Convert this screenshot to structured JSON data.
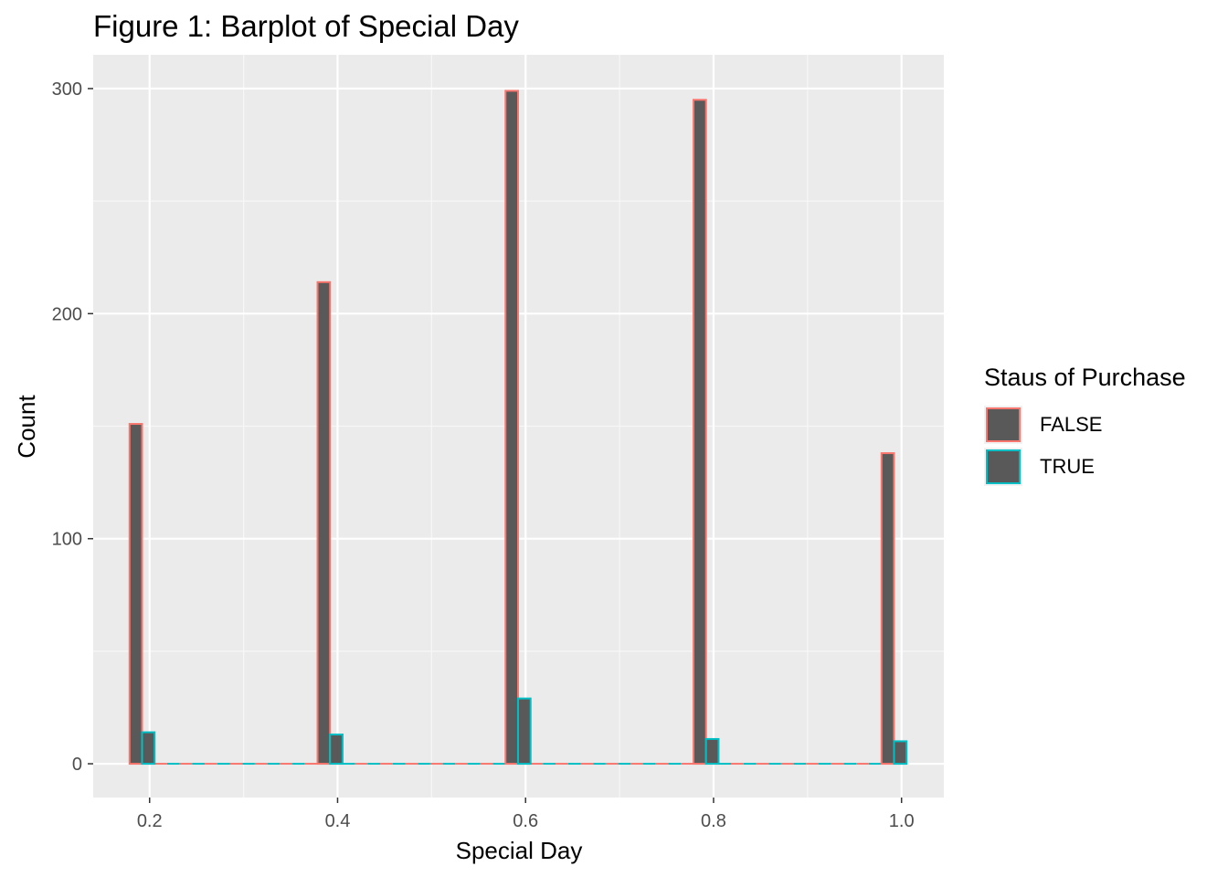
{
  "chart_data": {
    "type": "bar",
    "title": "Figure 1: Barplot of Special Day",
    "xlabel": "Special Day",
    "ylabel": "Count",
    "x_ticks": [
      "0.2",
      "0.4",
      "0.6",
      "0.8",
      "1.0"
    ],
    "y_ticks": [
      "0",
      "100",
      "200",
      "300"
    ],
    "xlim": [
      0.14,
      1.045
    ],
    "ylim": [
      -15,
      315
    ],
    "grid": true,
    "legend": {
      "title": "Staus of Purchase",
      "placement": "right",
      "entries": [
        {
          "label": "FALSE",
          "color": "#F8766D"
        },
        {
          "label": "TRUE",
          "color": "#00BFC4"
        }
      ]
    },
    "bar_fill": "#595959",
    "bin_width": 0.01333,
    "series": [
      {
        "name": "FALSE",
        "color": "#F8766D",
        "x": [
          0.2,
          0.4,
          0.6,
          0.8,
          1.0
        ],
        "values": [
          151,
          214,
          299,
          295,
          138
        ]
      },
      {
        "name": "TRUE",
        "color": "#00BFC4",
        "x": [
          0.2,
          0.4,
          0.6,
          0.8,
          1.0
        ],
        "values": [
          14,
          13,
          29,
          11,
          10
        ]
      }
    ]
  }
}
